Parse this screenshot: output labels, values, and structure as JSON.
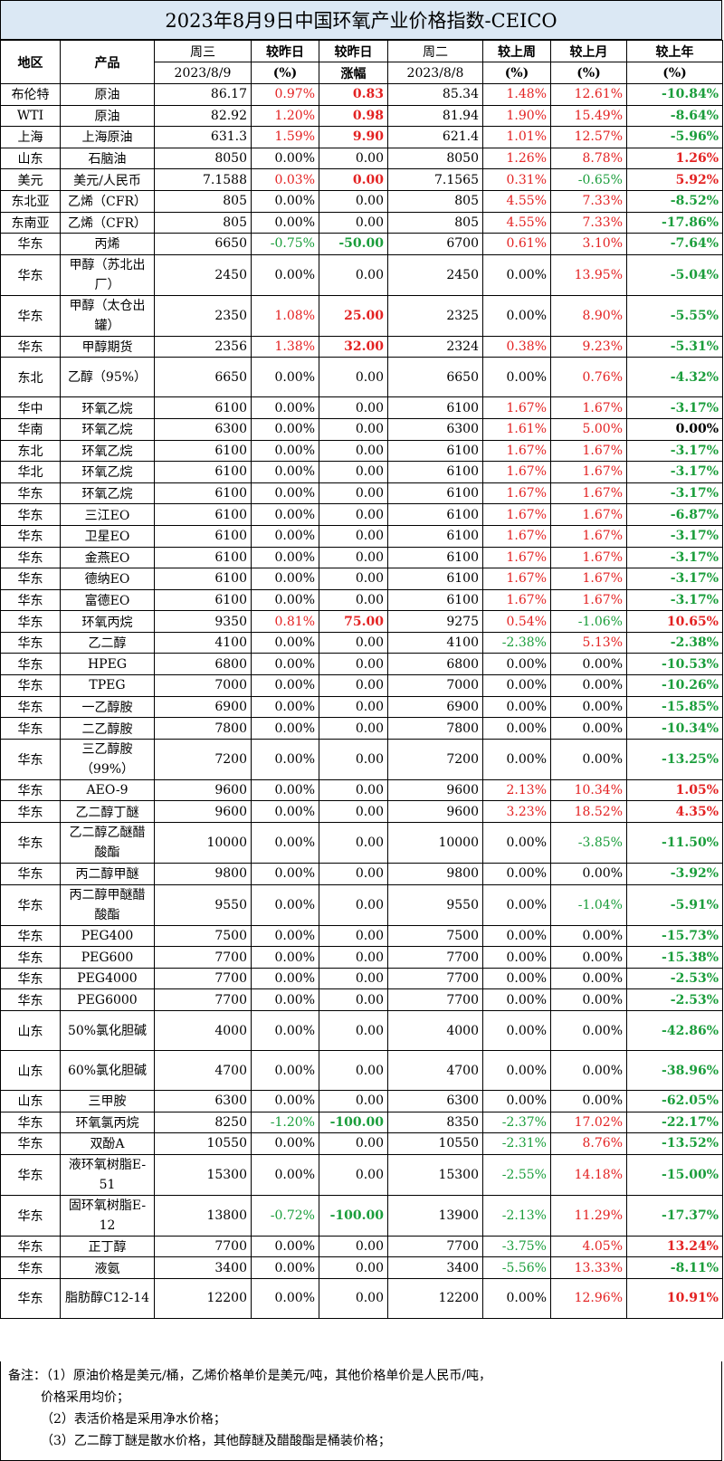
{
  "title": "2023年8月9日中国环氧产业价格指数-CEICO",
  "header": {
    "region": "地区",
    "product": "产品",
    "wed": "周三",
    "wed_date": "2023/8/9",
    "dod_pct": "较昨日",
    "dod_pct_unit": "(%)",
    "dod_amt": "较昨日",
    "dod_amt_unit": "涨幅",
    "tue": "周二",
    "tue_date": "2023/8/8",
    "wow": "较上周",
    "wow_unit": "(%)",
    "mom": "较上月",
    "mom_unit": "(%)",
    "yoy": "较上年",
    "yoy_unit": "(%)"
  },
  "rows": [
    {
      "region": "布伦特",
      "product": "原油",
      "p1": "86.17",
      "dp": "0.97%",
      "dpc": "red",
      "da": "0.83",
      "dac": "red",
      "p2": "85.34",
      "w": "1.48%",
      "wc": "red",
      "m": "12.61%",
      "mc": "red",
      "y": "-10.84%",
      "yc": "green"
    },
    {
      "region": "WTI",
      "product": "原油",
      "p1": "82.92",
      "dp": "1.20%",
      "dpc": "red",
      "da": "0.98",
      "dac": "red",
      "p2": "81.94",
      "w": "1.90%",
      "wc": "red",
      "m": "15.49%",
      "mc": "red",
      "y": "-8.64%",
      "yc": "green"
    },
    {
      "region": "上海",
      "product": "上海原油",
      "p1": "631.3",
      "dp": "1.59%",
      "dpc": "red",
      "da": "9.90",
      "dac": "red",
      "p2": "621.4",
      "w": "1.01%",
      "wc": "red",
      "m": "12.57%",
      "mc": "red",
      "y": "-5.96%",
      "yc": "green"
    },
    {
      "region": "山东",
      "product": "石脑油",
      "p1": "8050",
      "dp": "0.00%",
      "dpc": "",
      "da": "0.00",
      "dac": "",
      "p2": "8050",
      "w": "1.26%",
      "wc": "red",
      "m": "8.78%",
      "mc": "red",
      "y": "1.26%",
      "yc": "red"
    },
    {
      "region": "美元",
      "product": "美元/人民币",
      "p1": "7.1588",
      "dp": "0.03%",
      "dpc": "red",
      "da": "0.00",
      "dac": "red",
      "p2": "7.1565",
      "w": "0.31%",
      "wc": "red",
      "m": "-0.65%",
      "mc": "green",
      "y": "5.92%",
      "yc": "red"
    },
    {
      "region": "东北亚",
      "product": "乙烯（CFR）",
      "p1": "805",
      "dp": "0.00%",
      "dpc": "",
      "da": "0.00",
      "dac": "",
      "p2": "805",
      "w": "4.55%",
      "wc": "red",
      "m": "7.33%",
      "mc": "red",
      "y": "-8.52%",
      "yc": "green"
    },
    {
      "region": "东南亚",
      "product": "乙烯（CFR）",
      "p1": "805",
      "dp": "0.00%",
      "dpc": "",
      "da": "0.00",
      "dac": "",
      "p2": "805",
      "w": "4.55%",
      "wc": "red",
      "m": "7.33%",
      "mc": "red",
      "y": "-17.86%",
      "yc": "green"
    },
    {
      "region": "华东",
      "product": "丙烯",
      "p1": "6650",
      "dp": "-0.75%",
      "dpc": "green",
      "da": "-50.00",
      "dac": "green",
      "p2": "6700",
      "w": "0.61%",
      "wc": "red",
      "m": "3.10%",
      "mc": "red",
      "y": "-7.64%",
      "yc": "green"
    },
    {
      "region": "华东",
      "product": "甲醇（苏北出厂）",
      "p1": "2450",
      "dp": "0.00%",
      "dpc": "",
      "da": "0.00",
      "dac": "",
      "p2": "2450",
      "w": "0.00%",
      "wc": "",
      "m": "13.95%",
      "mc": "red",
      "y": "-5.04%",
      "yc": "green",
      "tall": true
    },
    {
      "region": "华东",
      "product": "甲醇（太仓出罐）",
      "p1": "2350",
      "dp": "1.08%",
      "dpc": "red",
      "da": "25.00",
      "dac": "red",
      "p2": "2325",
      "w": "0.00%",
      "wc": "",
      "m": "8.90%",
      "mc": "red",
      "y": "-5.55%",
      "yc": "green",
      "tall": true
    },
    {
      "region": "华东",
      "product": "甲醇期货",
      "p1": "2356",
      "dp": "1.38%",
      "dpc": "red",
      "da": "32.00",
      "dac": "red",
      "p2": "2324",
      "w": "0.38%",
      "wc": "red",
      "m": "9.23%",
      "mc": "red",
      "y": "-5.31%",
      "yc": "green"
    },
    {
      "region": "东北",
      "product": "乙醇（95%）",
      "p1": "6650",
      "dp": "0.00%",
      "dpc": "",
      "da": "0.00",
      "dac": "",
      "p2": "6650",
      "w": "0.00%",
      "wc": "",
      "m": "0.76%",
      "mc": "red",
      "y": "-4.32%",
      "yc": "green",
      "tall": true
    },
    {
      "region": "华中",
      "product": "环氧乙烷",
      "p1": "6100",
      "dp": "0.00%",
      "dpc": "",
      "da": "0.00",
      "dac": "",
      "p2": "6100",
      "w": "1.67%",
      "wc": "red",
      "m": "1.67%",
      "mc": "red",
      "y": "-3.17%",
      "yc": "green"
    },
    {
      "region": "华南",
      "product": "环氧乙烷",
      "p1": "6300",
      "dp": "0.00%",
      "dpc": "",
      "da": "0.00",
      "dac": "",
      "p2": "6300",
      "w": "1.61%",
      "wc": "red",
      "m": "5.00%",
      "mc": "red",
      "y": "0.00%",
      "yc": ""
    },
    {
      "region": "东北",
      "product": "环氧乙烷",
      "p1": "6100",
      "dp": "0.00%",
      "dpc": "",
      "da": "0.00",
      "dac": "",
      "p2": "6100",
      "w": "1.67%",
      "wc": "red",
      "m": "1.67%",
      "mc": "red",
      "y": "-3.17%",
      "yc": "green"
    },
    {
      "region": "华北",
      "product": "环氧乙烷",
      "p1": "6100",
      "dp": "0.00%",
      "dpc": "",
      "da": "0.00",
      "dac": "",
      "p2": "6100",
      "w": "1.67%",
      "wc": "red",
      "m": "1.67%",
      "mc": "red",
      "y": "-3.17%",
      "yc": "green"
    },
    {
      "region": "华东",
      "product": "环氧乙烷",
      "p1": "6100",
      "dp": "0.00%",
      "dpc": "",
      "da": "0.00",
      "dac": "",
      "p2": "6100",
      "w": "1.67%",
      "wc": "red",
      "m": "1.67%",
      "mc": "red",
      "y": "-3.17%",
      "yc": "green"
    },
    {
      "region": "华东",
      "product": "三江EO",
      "p1": "6100",
      "dp": "0.00%",
      "dpc": "",
      "da": "0.00",
      "dac": "",
      "p2": "6100",
      "w": "1.67%",
      "wc": "red",
      "m": "1.67%",
      "mc": "red",
      "y": "-6.87%",
      "yc": "green"
    },
    {
      "region": "华东",
      "product": "卫星EO",
      "p1": "6100",
      "dp": "0.00%",
      "dpc": "",
      "da": "0.00",
      "dac": "",
      "p2": "6100",
      "w": "1.67%",
      "wc": "red",
      "m": "1.67%",
      "mc": "red",
      "y": "-3.17%",
      "yc": "green"
    },
    {
      "region": "华东",
      "product": "金燕EO",
      "p1": "6100",
      "dp": "0.00%",
      "dpc": "",
      "da": "0.00",
      "dac": "",
      "p2": "6100",
      "w": "1.67%",
      "wc": "red",
      "m": "1.67%",
      "mc": "red",
      "y": "-3.17%",
      "yc": "green"
    },
    {
      "region": "华东",
      "product": "德纳EO",
      "p1": "6100",
      "dp": "0.00%",
      "dpc": "",
      "da": "0.00",
      "dac": "",
      "p2": "6100",
      "w": "1.67%",
      "wc": "red",
      "m": "1.67%",
      "mc": "red",
      "y": "-3.17%",
      "yc": "green"
    },
    {
      "region": "华东",
      "product": "富德EO",
      "p1": "6100",
      "dp": "0.00%",
      "dpc": "",
      "da": "0.00",
      "dac": "",
      "p2": "6100",
      "w": "1.67%",
      "wc": "red",
      "m": "1.67%",
      "mc": "red",
      "y": "-3.17%",
      "yc": "green"
    },
    {
      "region": "华东",
      "product": "环氧丙烷",
      "p1": "9350",
      "dp": "0.81%",
      "dpc": "red",
      "da": "75.00",
      "dac": "red",
      "p2": "9275",
      "w": "0.54%",
      "wc": "red",
      "m": "-1.06%",
      "mc": "green",
      "y": "10.65%",
      "yc": "red"
    },
    {
      "region": "华东",
      "product": "乙二醇",
      "p1": "4100",
      "dp": "0.00%",
      "dpc": "",
      "da": "0.00",
      "dac": "",
      "p2": "4100",
      "w": "-2.38%",
      "wc": "green",
      "m": "5.13%",
      "mc": "red",
      "y": "-2.38%",
      "yc": "green"
    },
    {
      "region": "华东",
      "product": "HPEG",
      "p1": "6800",
      "dp": "0.00%",
      "dpc": "",
      "da": "0.00",
      "dac": "",
      "p2": "6800",
      "w": "0.00%",
      "wc": "",
      "m": "0.00%",
      "mc": "",
      "y": "-10.53%",
      "yc": "green"
    },
    {
      "region": "华东",
      "product": "TPEG",
      "p1": "7000",
      "dp": "0.00%",
      "dpc": "",
      "da": "0.00",
      "dac": "",
      "p2": "7000",
      "w": "0.00%",
      "wc": "",
      "m": "0.00%",
      "mc": "",
      "y": "-10.26%",
      "yc": "green"
    },
    {
      "region": "华东",
      "product": "一乙醇胺",
      "p1": "6900",
      "dp": "0.00%",
      "dpc": "",
      "da": "0.00",
      "dac": "",
      "p2": "6900",
      "w": "0.00%",
      "wc": "",
      "m": "0.00%",
      "mc": "",
      "y": "-15.85%",
      "yc": "green"
    },
    {
      "region": "华东",
      "product": "二乙醇胺",
      "p1": "7800",
      "dp": "0.00%",
      "dpc": "",
      "da": "0.00",
      "dac": "",
      "p2": "7800",
      "w": "0.00%",
      "wc": "",
      "m": "0.00%",
      "mc": "",
      "y": "-10.34%",
      "yc": "green"
    },
    {
      "region": "华东",
      "product": "三乙醇胺（99%）",
      "p1": "7200",
      "dp": "0.00%",
      "dpc": "",
      "da": "0.00",
      "dac": "",
      "p2": "7200",
      "w": "0.00%",
      "wc": "",
      "m": "0.00%",
      "mc": "",
      "y": "-13.25%",
      "yc": "green",
      "tall": true
    },
    {
      "region": "华东",
      "product": "AEO-9",
      "p1": "9600",
      "dp": "0.00%",
      "dpc": "",
      "da": "0.00",
      "dac": "",
      "p2": "9600",
      "w": "2.13%",
      "wc": "red",
      "m": "10.34%",
      "mc": "red",
      "y": "1.05%",
      "yc": "red"
    },
    {
      "region": "华东",
      "product": "乙二醇丁醚",
      "p1": "9600",
      "dp": "0.00%",
      "dpc": "",
      "da": "0.00",
      "dac": "",
      "p2": "9600",
      "w": "3.23%",
      "wc": "red",
      "m": "18.52%",
      "mc": "red",
      "y": "4.35%",
      "yc": "red"
    },
    {
      "region": "华东",
      "product": "乙二醇乙醚醋酸酯",
      "p1": "10000",
      "dp": "0.00%",
      "dpc": "",
      "da": "0.00",
      "dac": "",
      "p2": "10000",
      "w": "0.00%",
      "wc": "",
      "m": "-3.85%",
      "mc": "green",
      "y": "-11.50%",
      "yc": "green",
      "tall": true
    },
    {
      "region": "华东",
      "product": "丙二醇甲醚",
      "p1": "9800",
      "dp": "0.00%",
      "dpc": "",
      "da": "0.00",
      "dac": "",
      "p2": "9800",
      "w": "0.00%",
      "wc": "",
      "m": "0.00%",
      "mc": "",
      "y": "-3.92%",
      "yc": "green"
    },
    {
      "region": "华东",
      "product": "丙二醇甲醚醋酸酯",
      "p1": "9550",
      "dp": "0.00%",
      "dpc": "",
      "da": "0.00",
      "dac": "",
      "p2": "9550",
      "w": "0.00%",
      "wc": "",
      "m": "-1.04%",
      "mc": "green",
      "y": "-5.91%",
      "yc": "green",
      "tall": true
    },
    {
      "region": "华东",
      "product": "PEG400",
      "p1": "7500",
      "dp": "0.00%",
      "dpc": "",
      "da": "0.00",
      "dac": "",
      "p2": "7500",
      "w": "0.00%",
      "wc": "",
      "m": "0.00%",
      "mc": "",
      "y": "-15.73%",
      "yc": "green"
    },
    {
      "region": "华东",
      "product": "PEG600",
      "p1": "7700",
      "dp": "0.00%",
      "dpc": "",
      "da": "0.00",
      "dac": "",
      "p2": "7700",
      "w": "0.00%",
      "wc": "",
      "m": "0.00%",
      "mc": "",
      "y": "-15.38%",
      "yc": "green"
    },
    {
      "region": "华东",
      "product": "PEG4000",
      "p1": "7700",
      "dp": "0.00%",
      "dpc": "",
      "da": "0.00",
      "dac": "",
      "p2": "7700",
      "w": "0.00%",
      "wc": "",
      "m": "0.00%",
      "mc": "",
      "y": "-2.53%",
      "yc": "green"
    },
    {
      "region": "华东",
      "product": "PEG6000",
      "p1": "7700",
      "dp": "0.00%",
      "dpc": "",
      "da": "0.00",
      "dac": "",
      "p2": "7700",
      "w": "0.00%",
      "wc": "",
      "m": "0.00%",
      "mc": "",
      "y": "-2.53%",
      "yc": "green"
    },
    {
      "region": "山东",
      "product": "50%氯化胆碱",
      "p1": "4000",
      "dp": "0.00%",
      "dpc": "",
      "da": "0.00",
      "dac": "",
      "p2": "4000",
      "w": "0.00%",
      "wc": "",
      "m": "0.00%",
      "mc": "",
      "y": "-42.86%",
      "yc": "green",
      "tall": true
    },
    {
      "region": "山东",
      "product": "60%氯化胆碱",
      "p1": "4700",
      "dp": "0.00%",
      "dpc": "",
      "da": "0.00",
      "dac": "",
      "p2": "4700",
      "w": "0.00%",
      "wc": "",
      "m": "0.00%",
      "mc": "",
      "y": "-38.96%",
      "yc": "green",
      "tall": true
    },
    {
      "region": "山东",
      "product": "三甲胺",
      "p1": "6300",
      "dp": "0.00%",
      "dpc": "",
      "da": "0.00",
      "dac": "",
      "p2": "6300",
      "w": "0.00%",
      "wc": "",
      "m": "0.00%",
      "mc": "",
      "y": "-62.05%",
      "yc": "green"
    },
    {
      "region": "华东",
      "product": "环氧氯丙烷",
      "p1": "8250",
      "dp": "-1.20%",
      "dpc": "green",
      "da": "-100.00",
      "dac": "green",
      "p2": "8350",
      "w": "-2.37%",
      "wc": "green",
      "m": "17.02%",
      "mc": "red",
      "y": "-22.17%",
      "yc": "green"
    },
    {
      "region": "华东",
      "product": "双酚A",
      "p1": "10550",
      "dp": "0.00%",
      "dpc": "",
      "da": "0.00",
      "dac": "",
      "p2": "10550",
      "w": "-2.31%",
      "wc": "green",
      "m": "8.76%",
      "mc": "red",
      "y": "-13.52%",
      "yc": "green"
    },
    {
      "region": "华东",
      "product": "液环氧树脂E-51",
      "p1": "15300",
      "dp": "0.00%",
      "dpc": "",
      "da": "0.00",
      "dac": "",
      "p2": "15300",
      "w": "-2.55%",
      "wc": "green",
      "m": "14.18%",
      "mc": "red",
      "y": "-15.00%",
      "yc": "green",
      "tall": true
    },
    {
      "region": "华东",
      "product": "固环氧树脂E-12",
      "p1": "13800",
      "dp": "-0.72%",
      "dpc": "green",
      "da": "-100.00",
      "dac": "green",
      "p2": "13900",
      "w": "-2.13%",
      "wc": "green",
      "m": "11.29%",
      "mc": "red",
      "y": "-17.37%",
      "yc": "green",
      "tall": true
    },
    {
      "region": "华东",
      "product": "正丁醇",
      "p1": "7700",
      "dp": "0.00%",
      "dpc": "",
      "da": "0.00",
      "dac": "",
      "p2": "7700",
      "w": "-3.75%",
      "wc": "green",
      "m": "4.05%",
      "mc": "red",
      "y": "13.24%",
      "yc": "red"
    },
    {
      "region": "华东",
      "product": "液氨",
      "p1": "3400",
      "dp": "0.00%",
      "dpc": "",
      "da": "0.00",
      "dac": "",
      "p2": "3400",
      "w": "-5.56%",
      "wc": "green",
      "m": "13.33%",
      "mc": "red",
      "y": "-8.11%",
      "yc": "green"
    },
    {
      "region": "华东",
      "product": "脂肪醇C12-14",
      "p1": "12200",
      "dp": "0.00%",
      "dpc": "",
      "da": "0.00",
      "dac": "",
      "p2": "12200",
      "w": "0.00%",
      "wc": "",
      "m": "12.96%",
      "mc": "red",
      "y": "10.91%",
      "yc": "red",
      "tall": true
    }
  ],
  "notes": [
    "备注：（1）原油价格是美元/桶，乙烯价格单价是美元/吨，其他价格单价是人民币/吨，",
    "价格采用均价；",
    "（2）表活价格是采用净水价格；",
    "（3）乙二醇丁醚是散水价格，其他醇醚及醋酸酯是桶装价格；"
  ],
  "colors": {
    "red": "#e32222",
    "green": "#1a9d3b",
    "title_bg": "#dbe8f4"
  }
}
